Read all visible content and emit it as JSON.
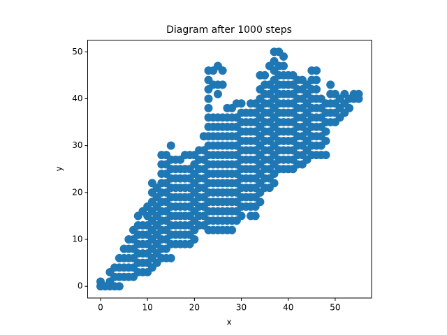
{
  "chart_data": {
    "type": "scatter",
    "title": "Diagram after 1000 steps",
    "xlabel": "x",
    "ylabel": "y",
    "color": "#1f77b4",
    "xlim": [
      -2.75,
      57.75
    ],
    "ylim": [
      -2.5,
      52.5
    ],
    "xticks": [
      0,
      10,
      20,
      30,
      40,
      50
    ],
    "yticks": [
      0,
      10,
      20,
      30,
      40,
      50
    ],
    "x": [
      0,
      0,
      1,
      2,
      2,
      2,
      3,
      3,
      3,
      4,
      4,
      4,
      4,
      5,
      5,
      5,
      5,
      6,
      6,
      6,
      6,
      6,
      7,
      7,
      7,
      7,
      7,
      7,
      8,
      8,
      8,
      8,
      8,
      8,
      8,
      9,
      9,
      9,
      9,
      9,
      9,
      9,
      10,
      10,
      10,
      10,
      10,
      10,
      10,
      10,
      11,
      11,
      11,
      11,
      11,
      11,
      11,
      11,
      11,
      11,
      12,
      12,
      12,
      12,
      12,
      12,
      12,
      12,
      12,
      13,
      13,
      13,
      13,
      13,
      13,
      13,
      13,
      13,
      13,
      13,
      13,
      14,
      14,
      14,
      14,
      14,
      14,
      14,
      14,
      14,
      14,
      14,
      14,
      15,
      15,
      15,
      15,
      15,
      15,
      15,
      15,
      15,
      15,
      15,
      15,
      16,
      16,
      16,
      16,
      16,
      16,
      16,
      16,
      16,
      16,
      17,
      17,
      17,
      17,
      17,
      17,
      17,
      17,
      17,
      17,
      18,
      18,
      18,
      18,
      18,
      18,
      18,
      18,
      18,
      18,
      19,
      19,
      19,
      19,
      19,
      19,
      19,
      19,
      19,
      19,
      20,
      20,
      20,
      20,
      20,
      20,
      20,
      20,
      20,
      20,
      21,
      21,
      21,
      21,
      21,
      21,
      21,
      21,
      21,
      22,
      22,
      22,
      22,
      22,
      22,
      22,
      22,
      22,
      22,
      23,
      23,
      23,
      23,
      23,
      23,
      23,
      23,
      23,
      23,
      23,
      23,
      23,
      23,
      23,
      23,
      23,
      23,
      24,
      24,
      24,
      24,
      24,
      24,
      24,
      24,
      24,
      24,
      24,
      24,
      24,
      24,
      24,
      25,
      25,
      25,
      25,
      25,
      25,
      25,
      25,
      25,
      25,
      25,
      25,
      25,
      25,
      25,
      25,
      26,
      26,
      26,
      26,
      26,
      26,
      26,
      26,
      26,
      26,
      26,
      26,
      26,
      26,
      26,
      27,
      27,
      27,
      27,
      27,
      27,
      27,
      27,
      27,
      27,
      27,
      27,
      27,
      27,
      28,
      28,
      28,
      28,
      28,
      28,
      28,
      28,
      28,
      28,
      28,
      28,
      28,
      28,
      29,
      29,
      29,
      29,
      29,
      29,
      29,
      29,
      29,
      29,
      29,
      29,
      29,
      30,
      30,
      30,
      30,
      30,
      30,
      30,
      30,
      30,
      30,
      30,
      30,
      30,
      31,
      31,
      31,
      31,
      31,
      31,
      31,
      31,
      31,
      31,
      31,
      32,
      32,
      32,
      32,
      32,
      32,
      32,
      32,
      32,
      32,
      32,
      32,
      32,
      33,
      33,
      33,
      33,
      33,
      33,
      33,
      33,
      33,
      33,
      33,
      33,
      33,
      34,
      34,
      34,
      34,
      34,
      34,
      34,
      34,
      34,
      34,
      34,
      34,
      34,
      34,
      35,
      35,
      35,
      35,
      35,
      35,
      35,
      35,
      35,
      35,
      35,
      35,
      35,
      36,
      36,
      36,
      36,
      36,
      36,
      36,
      36,
      36,
      36,
      36,
      36,
      36,
      37,
      37,
      37,
      37,
      37,
      37,
      37,
      37,
      37,
      37,
      37,
      37,
      37,
      37,
      37,
      38,
      38,
      38,
      38,
      38,
      38,
      38,
      38,
      38,
      38,
      38,
      38,
      38,
      39,
      39,
      39,
      39,
      39,
      39,
      39,
      39,
      39,
      39,
      39,
      39,
      39,
      40,
      40,
      40,
      40,
      40,
      40,
      40,
      40,
      40,
      40,
      40,
      41,
      41,
      41,
      41,
      41,
      41,
      41,
      41,
      41,
      41,
      41,
      42,
      42,
      42,
      42,
      42,
      42,
      42,
      42,
      42,
      42,
      43,
      43,
      43,
      43,
      43,
      43,
      43,
      43,
      43,
      43,
      44,
      44,
      44,
      44,
      44,
      44,
      44,
      44,
      44,
      45,
      45,
      45,
      45,
      45,
      45,
      45,
      45,
      45,
      45,
      46,
      46,
      46,
      46,
      46,
      46,
      46,
      46,
      46,
      46,
      47,
      47,
      47,
      47,
      47,
      47,
      47,
      48,
      48,
      48,
      48,
      48,
      48,
      49,
      49,
      49,
      49,
      49,
      50,
      50,
      50,
      50,
      51,
      51,
      51,
      52,
      52,
      52,
      53,
      53,
      54,
      54,
      55,
      55
    ],
    "y": [
      0,
      1,
      0,
      0,
      1,
      3,
      0,
      2,
      4,
      0,
      2,
      4,
      6,
      2,
      4,
      6,
      8,
      2,
      4,
      6,
      8,
      10,
      2,
      4,
      6,
      8,
      10,
      12,
      3,
      5,
      7,
      9,
      11,
      13,
      15,
      3,
      5,
      7,
      9,
      11,
      13,
      16,
      3,
      5,
      7,
      9,
      11,
      13,
      15,
      17,
      4,
      6,
      8,
      10,
      12,
      14,
      16,
      18,
      20,
      22,
      5,
      7,
      9,
      11,
      13,
      15,
      17,
      19,
      21,
      6,
      8,
      10,
      12,
      14,
      16,
      18,
      20,
      22,
      24,
      26,
      28,
      6,
      8,
      10,
      12,
      14,
      16,
      18,
      20,
      22,
      24,
      26,
      28,
      6,
      9,
      11,
      13,
      15,
      17,
      19,
      21,
      23,
      25,
      27,
      30,
      9,
      11,
      13,
      15,
      17,
      19,
      21,
      23,
      25,
      27,
      9,
      11,
      13,
      15,
      17,
      19,
      21,
      23,
      25,
      27,
      9,
      11,
      13,
      15,
      17,
      19,
      21,
      23,
      25,
      28,
      9,
      11,
      13,
      15,
      17,
      19,
      21,
      23,
      25,
      28,
      10,
      12,
      14,
      16,
      18,
      20,
      22,
      24,
      26,
      28,
      13,
      15,
      17,
      19,
      21,
      23,
      25,
      27,
      29,
      13,
      15,
      17,
      19,
      21,
      23,
      25,
      27,
      29,
      32,
      12,
      14,
      16,
      18,
      20,
      22,
      24,
      26,
      28,
      30,
      32,
      34,
      36,
      38,
      40,
      42,
      44,
      46,
      12,
      14,
      16,
      18,
      20,
      22,
      24,
      26,
      28,
      30,
      32,
      34,
      36,
      43,
      46,
      12,
      14,
      16,
      18,
      20,
      22,
      24,
      26,
      28,
      30,
      32,
      34,
      36,
      41,
      43,
      47,
      12,
      14,
      16,
      18,
      20,
      22,
      24,
      26,
      28,
      30,
      32,
      34,
      36,
      43,
      46,
      12,
      14,
      16,
      18,
      20,
      22,
      24,
      26,
      28,
      30,
      32,
      34,
      36,
      38,
      12,
      14,
      16,
      18,
      20,
      22,
      24,
      26,
      28,
      30,
      32,
      34,
      36,
      38,
      14,
      16,
      18,
      20,
      22,
      24,
      26,
      28,
      30,
      32,
      34,
      36,
      39,
      15,
      17,
      19,
      21,
      23,
      25,
      27,
      29,
      31,
      33,
      35,
      37,
      39,
      17,
      19,
      21,
      23,
      25,
      27,
      29,
      31,
      33,
      35,
      37,
      15,
      17,
      19,
      21,
      23,
      25,
      27,
      29,
      31,
      33,
      35,
      37,
      39,
      15,
      17,
      19,
      21,
      23,
      25,
      27,
      29,
      31,
      33,
      35,
      37,
      39,
      18,
      20,
      22,
      24,
      26,
      28,
      30,
      32,
      34,
      36,
      38,
      40,
      42,
      45,
      21,
      23,
      25,
      27,
      29,
      31,
      33,
      35,
      37,
      39,
      41,
      43,
      45,
      21,
      23,
      25,
      27,
      29,
      31,
      33,
      35,
      37,
      39,
      41,
      43,
      47,
      22,
      24,
      26,
      28,
      30,
      32,
      34,
      36,
      38,
      40,
      42,
      44,
      46,
      48,
      50,
      25,
      27,
      29,
      31,
      33,
      35,
      37,
      39,
      41,
      43,
      45,
      47,
      50,
      25,
      27,
      29,
      31,
      33,
      35,
      37,
      39,
      41,
      43,
      45,
      47,
      49,
      25,
      27,
      29,
      31,
      33,
      35,
      37,
      39,
      41,
      43,
      45,
      25,
      27,
      29,
      31,
      33,
      35,
      37,
      39,
      41,
      43,
      45,
      26,
      28,
      30,
      32,
      34,
      36,
      38,
      40,
      42,
      44,
      26,
      28,
      30,
      32,
      34,
      36,
      38,
      40,
      42,
      44,
      27,
      29,
      31,
      33,
      35,
      37,
      39,
      41,
      43,
      28,
      30,
      32,
      34,
      36,
      38,
      40,
      42,
      44,
      46,
      28,
      30,
      32,
      34,
      36,
      38,
      40,
      42,
      44,
      46,
      28,
      30,
      32,
      34,
      36,
      38,
      40,
      28,
      31,
      33,
      35,
      37,
      39,
      35,
      37,
      39,
      41,
      43,
      35,
      37,
      39,
      41,
      36,
      38,
      40,
      37,
      39,
      41,
      38,
      40,
      40,
      41,
      40,
      41
    ]
  }
}
